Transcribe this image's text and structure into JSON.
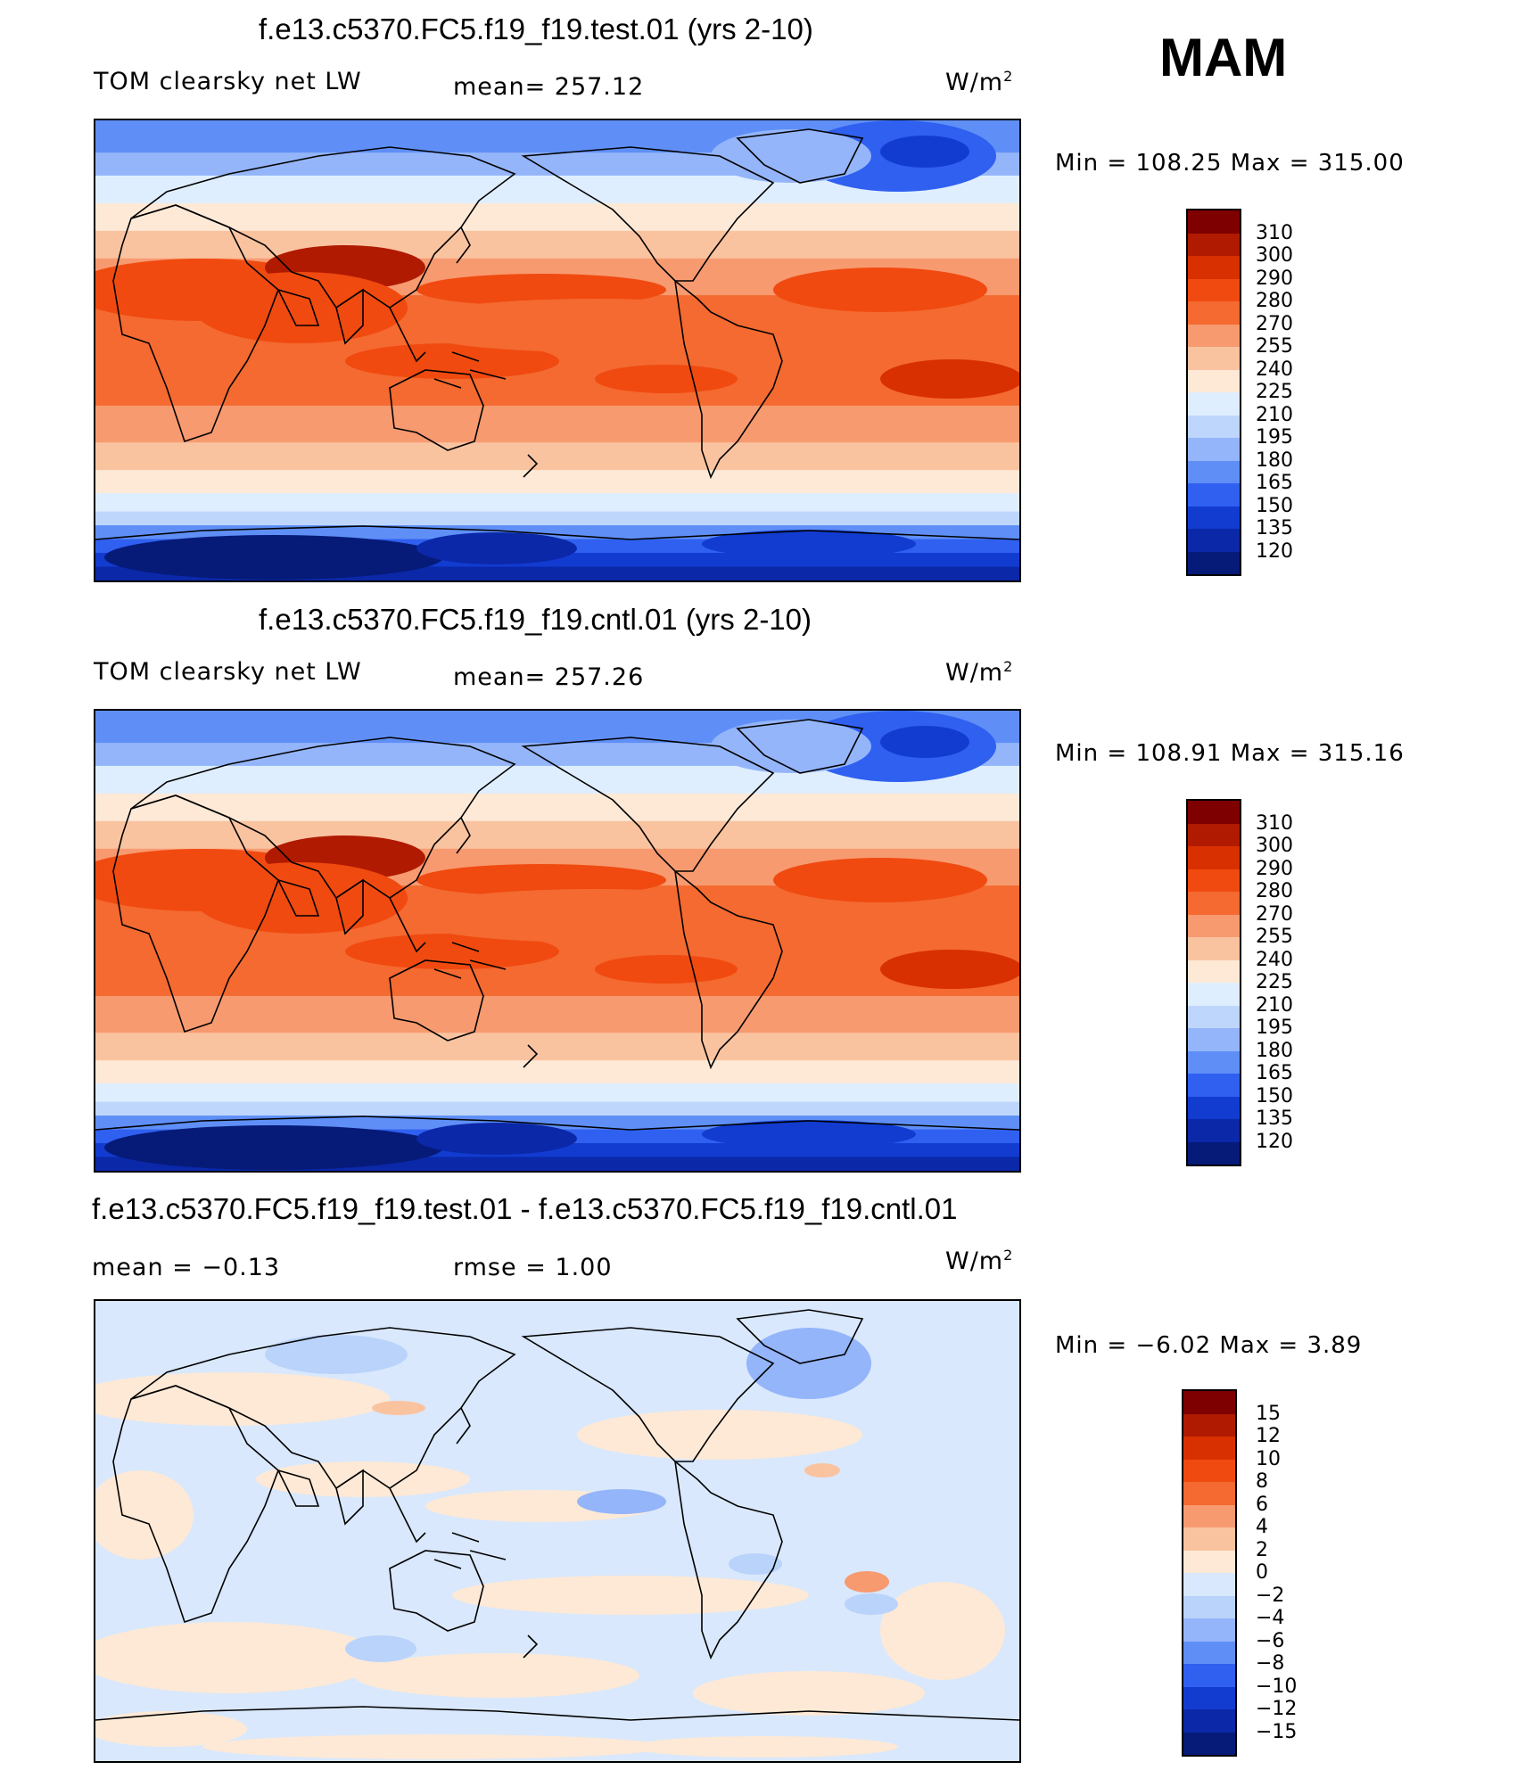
{
  "season": "MAM",
  "panels": [
    {
      "id": "test",
      "title": "f.e13.c5370.FC5.f19_f19.test.01 (yrs 2-10)",
      "variable": "TOM clearsky net LW",
      "stat": "mean=  257.12",
      "units": "W/m",
      "units_sup": "2",
      "minmax": "Min  =  108.25  Max  =  315.00",
      "colorbar_labels": [
        "310",
        "300",
        "290",
        "280",
        "270",
        "255",
        "240",
        "225",
        "210",
        "195",
        "180",
        "165",
        "150",
        "135",
        "120"
      ]
    },
    {
      "id": "cntl",
      "title": "f.e13.c5370.FC5.f19_f19.cntl.01 (yrs 2-10)",
      "variable": "TOM clearsky net LW",
      "stat": "mean=  257.26",
      "units": "W/m",
      "units_sup": "2",
      "minmax": "Min  =  108.91  Max  =  315.16",
      "colorbar_labels": [
        "310",
        "300",
        "290",
        "280",
        "270",
        "255",
        "240",
        "225",
        "210",
        "195",
        "180",
        "165",
        "150",
        "135",
        "120"
      ]
    },
    {
      "id": "diff",
      "title": "f.e13.c5370.FC5.f19_f19.test.01 - f.e13.c5370.FC5.f19_f19.cntl.01",
      "variable": "mean  =   −0.13",
      "stat": "rmse  =    1.00",
      "units": "W/m",
      "units_sup": "2",
      "minmax": "Min  =    −6.02  Max  =     3.89",
      "colorbar_labels": [
        "15",
        "12",
        "10",
        "8",
        "6",
        "4",
        "2",
        "0",
        "−2",
        "−4",
        "−6",
        "−8",
        "−10",
        "−12",
        "−15"
      ]
    }
  ],
  "colors": {
    "abs_scale": [
      "#7f0000",
      "#b01a00",
      "#d83000",
      "#f04a10",
      "#f46a30",
      "#f79a70",
      "#fac3a0",
      "#fde9d6",
      "#dfeefe",
      "#bfd6fc",
      "#94b5fa",
      "#5f8ff6",
      "#2f60f0",
      "#123cd0",
      "#0a28a8",
      "#061a78"
    ],
    "diff_scale": [
      "#7f0000",
      "#b01a00",
      "#d83000",
      "#f04a10",
      "#f46a30",
      "#f79a70",
      "#fac3a0",
      "#fde9d6",
      "#d9e8fc",
      "#bad3fb",
      "#94b5fa",
      "#5f8ff6",
      "#2f60f0",
      "#123cd0",
      "#0a28a8",
      "#061a78"
    ],
    "coastline": "#000000"
  }
}
